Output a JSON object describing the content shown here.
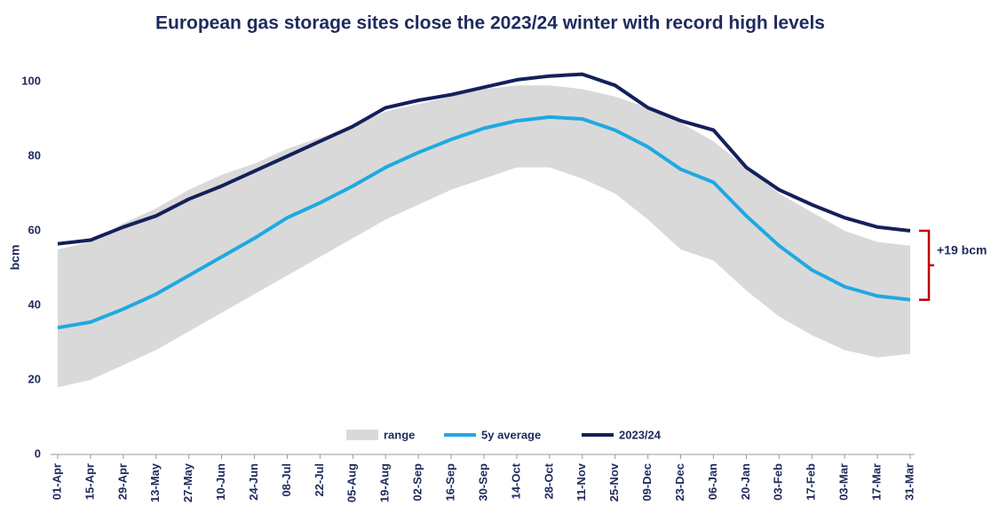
{
  "chart_data": {
    "type": "band-line",
    "title": "European gas storage sites close the 2023/24 winter with record high levels",
    "y_label": "bcm",
    "categories": [
      "01-Apr",
      "15-Apr",
      "29-Apr",
      "13-May",
      "27-May",
      "10-Jun",
      "24-Jun",
      "08-Jul",
      "22-Jul",
      "05-Aug",
      "19-Aug",
      "02-Sep",
      "16-Sep",
      "30-Sep",
      "14-Oct",
      "28-Oct",
      "11-Nov",
      "25-Nov",
      "09-Dec",
      "23-Dec",
      "06-Jan",
      "20-Jan",
      "03-Feb",
      "17-Feb",
      "03-Mar",
      "17-Mar",
      "31-Mar"
    ],
    "series": [
      {
        "name": "range",
        "color": "#d9d9d9",
        "low": [
          18,
          20,
          24,
          28,
          33,
          38,
          43,
          48,
          53,
          58,
          63,
          67,
          71,
          74,
          77,
          77,
          74,
          70,
          63,
          55,
          52,
          44,
          37,
          32,
          28,
          26,
          27
        ],
        "high": [
          55,
          57,
          62,
          66,
          71,
          75,
          78,
          82,
          85,
          88,
          92,
          94,
          96,
          98,
          99,
          99,
          98,
          96,
          93,
          89,
          84,
          77,
          70,
          65,
          60,
          57,
          56
        ]
      },
      {
        "name": "5y average",
        "color": "#1fa9e1",
        "values": [
          34,
          35.5,
          39,
          43,
          48,
          53,
          58,
          63.5,
          67.5,
          72,
          77,
          81,
          84.5,
          87.5,
          89.5,
          90.5,
          90,
          87,
          82.5,
          76.5,
          73,
          64,
          56,
          49.5,
          45,
          42.5,
          41.5
        ]
      },
      {
        "name": "2023/24",
        "color": "#14205a",
        "values": [
          56.5,
          57.5,
          61,
          64,
          68.5,
          72,
          76,
          80,
          84,
          88,
          93,
          95,
          96.5,
          98.5,
          100.5,
          101.5,
          102,
          99,
          93,
          89.5,
          87,
          77,
          71,
          67,
          63.5,
          61,
          60
        ]
      }
    ],
    "annotation": "+19 bcm",
    "ylim": [
      0,
      105
    ],
    "yticks": [
      0,
      20,
      40,
      60,
      80,
      100
    ]
  }
}
